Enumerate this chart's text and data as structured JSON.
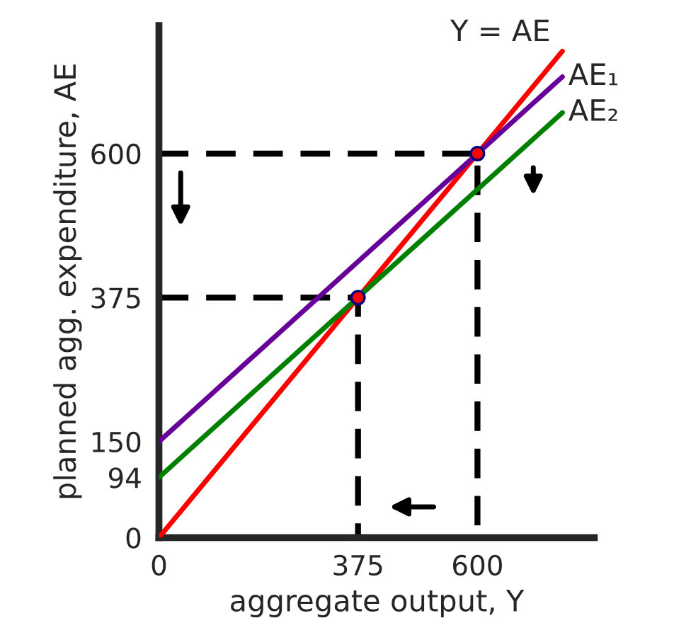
{
  "chart_data": {
    "type": "line",
    "xlabel": "aggregate output, Y",
    "ylabel": "planned agg. expenditure, AE",
    "xlim": [
      0,
      820
    ],
    "ylim": [
      0,
      800
    ],
    "xticks": [
      0,
      375,
      600
    ],
    "yticks": [
      0,
      94,
      150,
      375,
      600
    ],
    "grid": false,
    "legend": false,
    "series": [
      {
        "name": "Y = AE",
        "color": "#ff0000",
        "x": [
          0,
          760
        ],
        "values": [
          0,
          760
        ]
      },
      {
        "name": "AE₁",
        "color": "#660099",
        "x": [
          0,
          760
        ],
        "values": [
          150,
          720
        ]
      },
      {
        "name": "AE₂",
        "color": "#008000",
        "x": [
          0,
          760
        ],
        "values": [
          94,
          664
        ]
      },
      {
        "color": "#000000",
        "line_style": "dashed",
        "x": [
          0,
          600,
          600
        ],
        "values": [
          600,
          600,
          0
        ]
      },
      {
        "color": "#000000",
        "line_style": "dashed",
        "x": [
          0,
          375,
          375
        ],
        "values": [
          375,
          375,
          0
        ]
      },
      {
        "type": "scatter",
        "color": "#ff0000",
        "marker": "circle",
        "x": [
          375,
          600
        ],
        "values": [
          375,
          600
        ]
      }
    ]
  }
}
